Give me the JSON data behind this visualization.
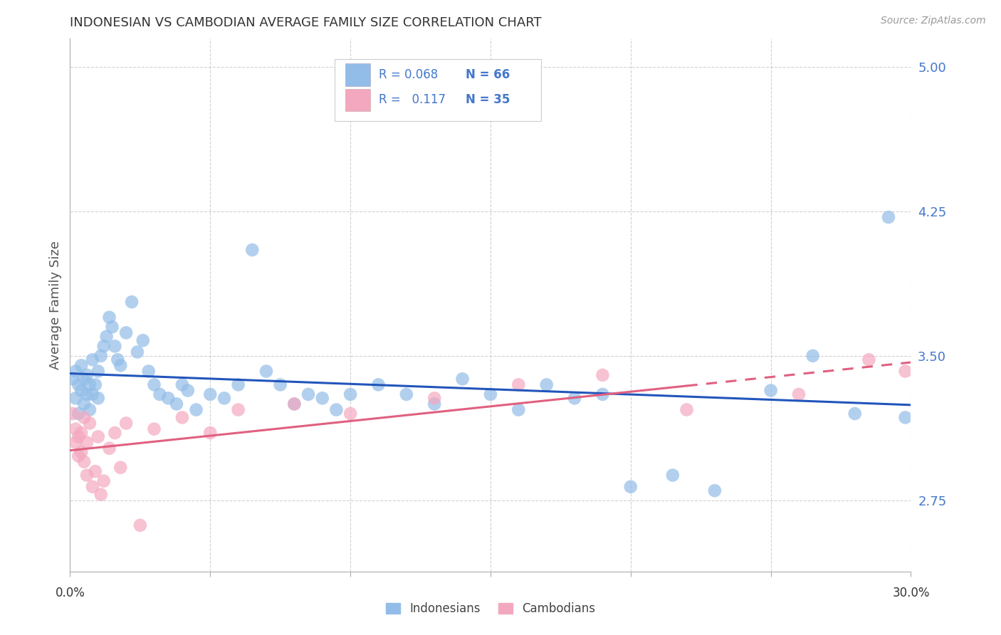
{
  "title": "INDONESIAN VS CAMBODIAN AVERAGE FAMILY SIZE CORRELATION CHART",
  "source": "Source: ZipAtlas.com",
  "ylabel": "Average Family Size",
  "yticks": [
    2.75,
    3.5,
    4.25,
    5.0
  ],
  "xlim": [
    0.0,
    0.3
  ],
  "ylim": [
    2.38,
    5.15
  ],
  "indonesian_R": "0.068",
  "indonesian_N": "66",
  "cambodian_R": "0.117",
  "cambodian_N": "35",
  "indonesian_color": "#92BDE8",
  "cambodian_color": "#F4A8C0",
  "trend_indonesian_color": "#2255BB",
  "trend_cambodian_color": "#E06080",
  "background_color": "#FFFFFF",
  "grid_color": "#CCCCCC",
  "title_color": "#333333",
  "label_color": "#4477CC",
  "indonesian_x": [
    0.001,
    0.002,
    0.002,
    0.003,
    0.003,
    0.004,
    0.004,
    0.005,
    0.005,
    0.006,
    0.006,
    0.007,
    0.007,
    0.008,
    0.008,
    0.009,
    0.01,
    0.01,
    0.011,
    0.012,
    0.013,
    0.014,
    0.015,
    0.016,
    0.017,
    0.018,
    0.02,
    0.022,
    0.024,
    0.026,
    0.028,
    0.03,
    0.032,
    0.035,
    0.038,
    0.04,
    0.042,
    0.045,
    0.05,
    0.055,
    0.06,
    0.065,
    0.07,
    0.075,
    0.08,
    0.085,
    0.09,
    0.095,
    0.1,
    0.11,
    0.12,
    0.13,
    0.14,
    0.15,
    0.16,
    0.17,
    0.18,
    0.19,
    0.2,
    0.215,
    0.23,
    0.25,
    0.265,
    0.28,
    0.292,
    0.298
  ],
  "indonesian_y": [
    3.38,
    3.42,
    3.28,
    3.35,
    3.2,
    3.32,
    3.45,
    3.25,
    3.38,
    3.3,
    3.4,
    3.35,
    3.22,
    3.48,
    3.3,
    3.35,
    3.28,
    3.42,
    3.5,
    3.55,
    3.6,
    3.7,
    3.65,
    3.55,
    3.48,
    3.45,
    3.62,
    3.78,
    3.52,
    3.58,
    3.42,
    3.35,
    3.3,
    3.28,
    3.25,
    3.35,
    3.32,
    3.22,
    3.3,
    3.28,
    3.35,
    4.05,
    3.42,
    3.35,
    3.25,
    3.3,
    3.28,
    3.22,
    3.3,
    3.35,
    3.3,
    3.25,
    3.38,
    3.3,
    3.22,
    3.35,
    3.28,
    3.3,
    2.82,
    2.88,
    2.8,
    3.32,
    3.5,
    3.2,
    4.22,
    3.18
  ],
  "cambodian_x": [
    0.001,
    0.002,
    0.002,
    0.003,
    0.003,
    0.004,
    0.004,
    0.005,
    0.005,
    0.006,
    0.006,
    0.007,
    0.008,
    0.009,
    0.01,
    0.011,
    0.012,
    0.014,
    0.016,
    0.018,
    0.02,
    0.025,
    0.03,
    0.04,
    0.05,
    0.06,
    0.08,
    0.1,
    0.13,
    0.16,
    0.19,
    0.22,
    0.26,
    0.285,
    0.298
  ],
  "cambodian_y": [
    3.2,
    3.12,
    3.05,
    3.08,
    2.98,
    3.1,
    3.0,
    2.95,
    3.18,
    3.05,
    2.88,
    3.15,
    2.82,
    2.9,
    3.08,
    2.78,
    2.85,
    3.02,
    3.1,
    2.92,
    3.15,
    2.62,
    3.12,
    3.18,
    3.1,
    3.22,
    3.25,
    3.2,
    3.28,
    3.35,
    3.4,
    3.22,
    3.3,
    3.48,
    3.42
  ]
}
